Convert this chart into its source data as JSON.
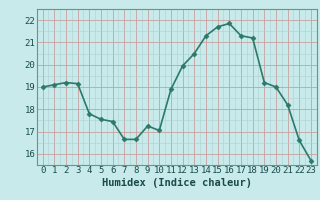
{
  "x": [
    0,
    1,
    2,
    3,
    4,
    5,
    6,
    7,
    8,
    9,
    10,
    11,
    12,
    13,
    14,
    15,
    16,
    17,
    18,
    19,
    20,
    21,
    22,
    23
  ],
  "y": [
    19.0,
    19.1,
    19.2,
    19.15,
    17.8,
    17.55,
    17.45,
    16.65,
    16.65,
    17.25,
    17.05,
    18.9,
    19.95,
    20.5,
    21.3,
    21.7,
    21.85,
    21.3,
    21.2,
    19.2,
    19.0,
    18.2,
    16.6,
    15.7
  ],
  "line_color": "#2a7a6a",
  "marker": "D",
  "marker_size": 2.5,
  "bg_color": "#c8eaea",
  "grid_color_major": "#aad4d4",
  "grid_color_minor": "#b8dede",
  "xlabel": "Humidex (Indice chaleur)",
  "ylim": [
    15.5,
    22.5
  ],
  "xlim": [
    -0.5,
    23.5
  ],
  "yticks": [
    16,
    17,
    18,
    19,
    20,
    21,
    22
  ],
  "xticks": [
    0,
    1,
    2,
    3,
    4,
    5,
    6,
    7,
    8,
    9,
    10,
    11,
    12,
    13,
    14,
    15,
    16,
    17,
    18,
    19,
    20,
    21,
    22,
    23
  ],
  "tick_fontsize": 6.5,
  "xlabel_fontsize": 7.5,
  "line_width": 1.2,
  "spine_color": "#5a9a9a"
}
